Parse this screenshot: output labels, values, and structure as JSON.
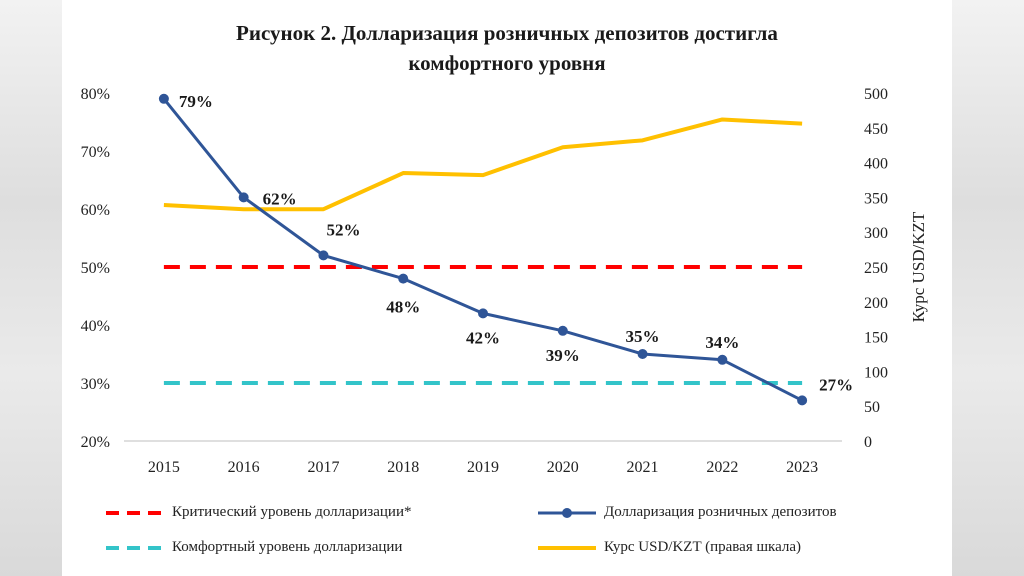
{
  "chart_data": {
    "type": "line",
    "title_line1": "Рисунок 2. Долларизация розничных депозитов достигла",
    "title_line2": "комфортного уровня",
    "categories": [
      "2015",
      "2016",
      "2017",
      "2018",
      "2019",
      "2020",
      "2021",
      "2022",
      "2023"
    ],
    "left_axis": {
      "ylim": [
        20,
        80
      ],
      "ticks": [
        80,
        70,
        60,
        50,
        40,
        30,
        20
      ],
      "tick_labels": [
        "80%",
        "70%",
        "60%",
        "50%",
        "40%",
        "30%",
        "20%"
      ]
    },
    "right_axis": {
      "label": "Курс USD/KZT",
      "ylim": [
        0,
        500
      ],
      "ticks": [
        500,
        450,
        400,
        350,
        300,
        250,
        200,
        150,
        100,
        50,
        0
      ],
      "tick_labels": [
        "500",
        "450",
        "400",
        "350",
        "300",
        "250",
        "200",
        "150",
        "100",
        "50",
        "0"
      ]
    },
    "series": [
      {
        "name": "Долларизация розничных депозитов",
        "axis": "left",
        "color": "#2f5597",
        "values": [
          79,
          62,
          52,
          48,
          42,
          39,
          35,
          34,
          27
        ],
        "data_labels": [
          "79%",
          "62%",
          "52%",
          "48%",
          "42%",
          "39%",
          "35%",
          "34%",
          "27%"
        ]
      },
      {
        "name": "Курс USD/KZT  (правая шкала)",
        "axis": "right",
        "color": "#ffc000",
        "values": [
          339,
          333,
          333,
          385,
          382,
          422,
          432,
          462,
          456
        ]
      },
      {
        "name": "Критический уровень долларизации*",
        "axis": "left",
        "color": "#ff0000",
        "style": "dashed",
        "values": [
          50,
          50,
          50,
          50,
          50,
          50,
          50,
          50,
          50
        ]
      },
      {
        "name": "Комфортный уровень долларизации",
        "axis": "left",
        "color": "#33c4c9",
        "style": "dashed",
        "values": [
          30,
          30,
          30,
          30,
          30,
          30,
          30,
          30,
          30
        ]
      }
    ]
  }
}
